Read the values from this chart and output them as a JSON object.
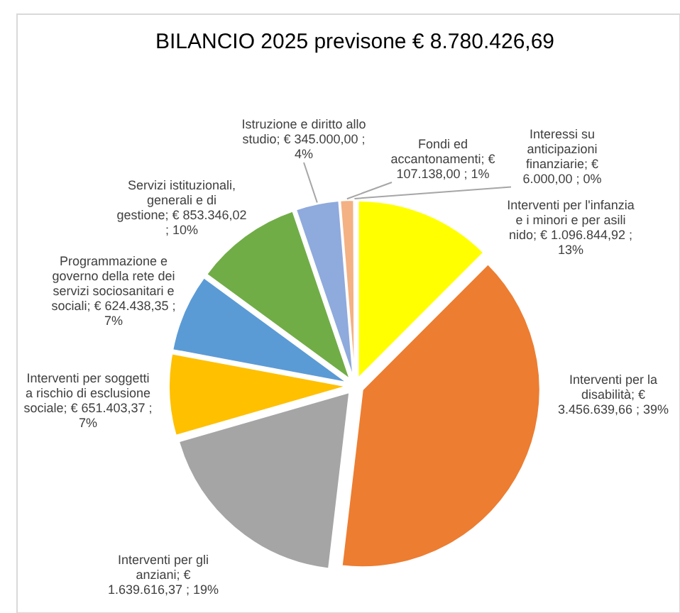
{
  "chart_data": {
    "type": "pie",
    "title": "BILANCIO 2025 previsone € 8.780.426,69",
    "categories": [
      "Interventi per l'infanzia e i minori e per asili nido",
      "Interventi per la disabilità",
      "Interventi per gli anziani",
      "Interventi per soggetti a rischio di esclusione sociale",
      "Programmazione e governo della rete dei servizi sociosanitari e sociali",
      "Servizi istituzionali, generali e di gestione",
      "Istruzione e diritto allo studio",
      "Fondi ed accantonamenti",
      "Interessi su anticipazioni finanziarie"
    ],
    "values": [
      1096844.92,
      3456639.66,
      1639616.37,
      651403.37,
      624438.35,
      853346.02,
      345000.0,
      107138.0,
      6000.0
    ],
    "value_labels": [
      "€ 1.096.844,92 ; 13%",
      "€ 3.456.639,66 ; 39%",
      "€ 1.639.616,37 ; 19%",
      "€ 651.403,37 ; 7%",
      "€ 624.438,35 ; 7%",
      "€ 853.346,02 ; 10%",
      "€ 345.000,00 ; 4%",
      "€ 107.138,00 ; 1%",
      "€ 6.000,00 ; 0%"
    ],
    "colors": [
      "#ffff00",
      "#ed7d31",
      "#a5a5a5",
      "#ffc000",
      "#5b9bd5",
      "#70ad47",
      "#8faadc",
      "#f4b183",
      "#9dc3e6"
    ],
    "legend": false
  }
}
